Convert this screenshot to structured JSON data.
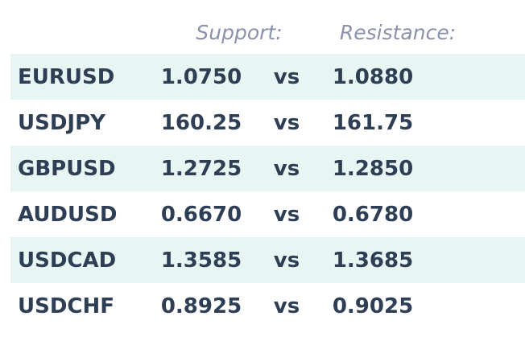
{
  "table": {
    "header": [
      "Support:",
      "Resistance:"
    ],
    "rows": [
      [
        "EURUSD",
        "1.0750",
        "vs",
        "1.0880"
      ],
      [
        "USDJPY",
        "160.25",
        "vs",
        "161.75"
      ],
      [
        "GBPUSD",
        "1.2725",
        "vs",
        "1.2850"
      ],
      [
        "AUDUSD",
        "0.6670",
        "vs",
        "0.6780"
      ],
      [
        "USDCAD",
        "1.3585",
        "vs",
        "1.3685"
      ],
      [
        "USDCHF",
        "0.8925",
        "vs",
        "0.9025"
      ]
    ]
  }
}
